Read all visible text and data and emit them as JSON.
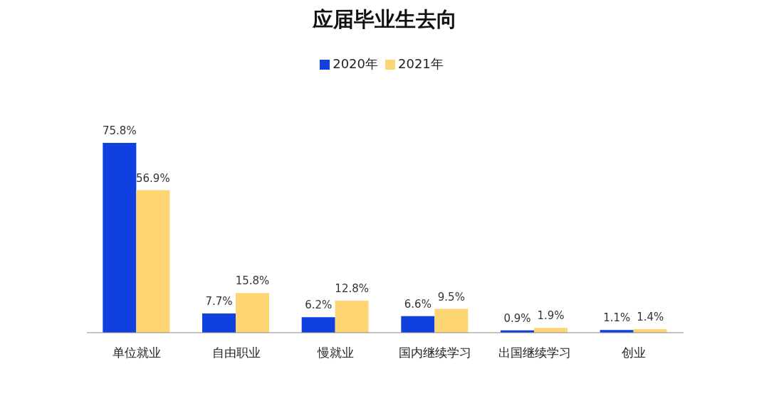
{
  "chart_data": {
    "type": "bar",
    "title": "应届毕业生去向",
    "categories": [
      "单位就业",
      "自由职业",
      "慢就业",
      "国内继续学习",
      "出国继续学习",
      "创业"
    ],
    "series": [
      {
        "name": "2020年",
        "color": "#1040e0",
        "values": [
          75.8,
          7.7,
          6.2,
          6.6,
          0.9,
          1.1
        ],
        "value_labels": [
          "75.8%",
          "7.7%",
          "6.2%",
          "6.6%",
          "0.9%",
          "1.1%"
        ]
      },
      {
        "name": "2021年",
        "color": "#fdd673",
        "values": [
          56.9,
          15.8,
          12.8,
          9.5,
          1.9,
          1.4
        ],
        "value_labels": [
          "56.9%",
          "15.8%",
          "12.8%",
          "9.5%",
          "1.9%",
          "1.4%"
        ]
      }
    ],
    "legend": "top",
    "grid": false
  }
}
